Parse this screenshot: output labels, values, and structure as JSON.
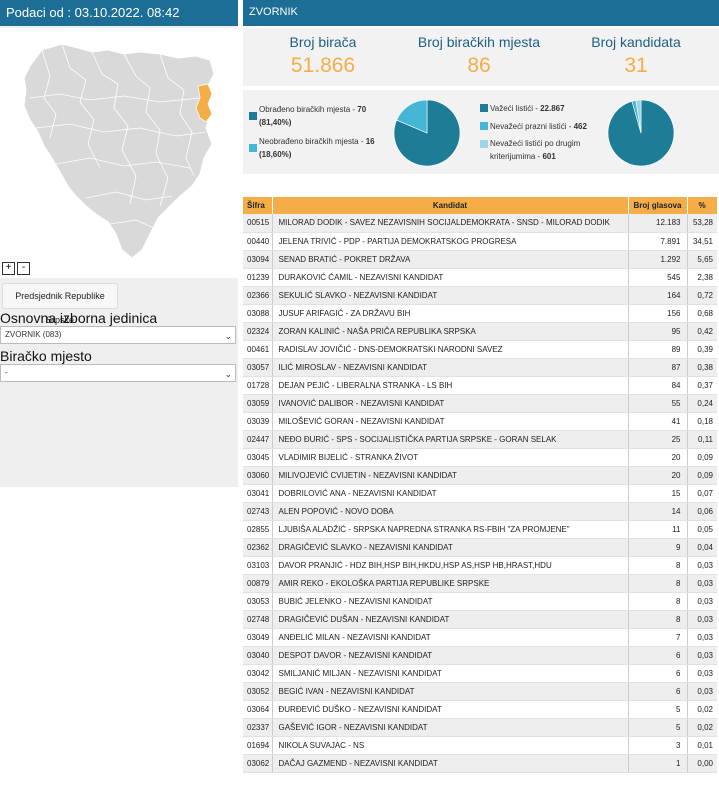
{
  "sidebar": {
    "header": "Podaci od : 03.10.2022. 08:42",
    "zoom_in": "+",
    "zoom_out": "-",
    "election_button": "Predsjednik Republike Srpske",
    "unit_label": "Osnovna izborna jedinica",
    "unit_value": "ZVORNIK (083)",
    "station_label": "Biračko mjesto",
    "station_value": "-"
  },
  "main": {
    "title": "ZVORNIK",
    "stats": [
      {
        "label": "Broj birača",
        "value": "51.866"
      },
      {
        "label": "Broj biračkih mjesta",
        "value": "86"
      },
      {
        "label": "Broj kandidata",
        "value": "31"
      }
    ],
    "stations_legend": [
      {
        "label": "Obrađeno biračkih mjesta - ",
        "value": "70",
        "pct": "(81,40%)",
        "color": "#1e7d96"
      },
      {
        "label": "Neobrađeno biračkih mjesta - ",
        "value": "16",
        "pct": "(18,60%)",
        "color": "#46b6d6"
      }
    ],
    "ballots_legend": [
      {
        "label": "Važeći listići - ",
        "value": "22.867",
        "color": "#1e7d96"
      },
      {
        "label": "Nevažeći prazni listići - ",
        "value": "462",
        "color": "#46b6d6"
      },
      {
        "label": "Nevažeći listići po drugim kriterijumima - ",
        "value": "601",
        "color": "#9fd4e3"
      }
    ],
    "pie_stations": [
      0.814,
      0.186
    ],
    "pie_ballots": [
      22867,
      462,
      601
    ],
    "colors": {
      "primary": "#1e7d96",
      "secondary": "#46b6d6",
      "tertiary": "#9fd4e3",
      "accent": "#f4ad47",
      "header": "#1d6e97"
    }
  },
  "table": {
    "headers": {
      "code": "Šifra",
      "candidate": "Kandidat",
      "votes": "Broj glasova",
      "pct": "%"
    },
    "rows": [
      {
        "code": "00515",
        "candidate": "MILORAD DODIK - SAVEZ NEZAVISNIH SOCIJALDEMOKRATA - SNSD - MILORAD DODIK",
        "votes": "12.183",
        "pct": "53,28"
      },
      {
        "code": "00440",
        "candidate": "JELENA TRIVIĆ - PDP - PARTIJA DEMOKRATSKOG PROGRESA",
        "votes": "7.891",
        "pct": "34,51"
      },
      {
        "code": "03094",
        "candidate": "SENAD BRATIĆ - POKRET DRŽAVA",
        "votes": "1.292",
        "pct": "5,65"
      },
      {
        "code": "01239",
        "candidate": "DURAKOVIĆ ĆAMIL - NEZAVISNI KANDIDAT",
        "votes": "545",
        "pct": "2,38"
      },
      {
        "code": "02366",
        "candidate": "SEKULIĆ SLAVKO - NEZAVISNI KANDIDAT",
        "votes": "164",
        "pct": "0,72"
      },
      {
        "code": "03088",
        "candidate": "JUSUF ARIFAGIĆ - ZA DRŽAVU BIH",
        "votes": "156",
        "pct": "0,68"
      },
      {
        "code": "02324",
        "candidate": "ZORAN KALINIĆ - NAŠA PRIČA REPUBLIKA SRPSKA",
        "votes": "95",
        "pct": "0,42"
      },
      {
        "code": "00461",
        "candidate": "RADISLAV JOVIČIĆ - DNS-DEMOKRATSKI NARODNI SAVEZ",
        "votes": "89",
        "pct": "0,39"
      },
      {
        "code": "03057",
        "candidate": "ILIĆ MIROSLAV - NEZAVISNI KANDIDAT",
        "votes": "87",
        "pct": "0,38"
      },
      {
        "code": "01728",
        "candidate": "DEJAN PEJIĆ - LIBERALNA STRANKA - LS BIH",
        "votes": "84",
        "pct": "0,37"
      },
      {
        "code": "03059",
        "candidate": "IVANOVIĆ DALIBOR - NEZAVISNI KANDIDAT",
        "votes": "55",
        "pct": "0,24"
      },
      {
        "code": "03039",
        "candidate": "MILOŠEVIĆ GORAN - NEZAVISNI KANDIDAT",
        "votes": "41",
        "pct": "0,18"
      },
      {
        "code": "02447",
        "candidate": "NEĐO ĐURIĆ - SPS - SOCIJALISTIČKA PARTIJA SRPSKE - GORAN SELAK",
        "votes": "25",
        "pct": "0,11"
      },
      {
        "code": "03045",
        "candidate": "VLADIMIR BIJELIĆ - STRANKA ŽIVOT",
        "votes": "20",
        "pct": "0,09"
      },
      {
        "code": "03060",
        "candidate": "MILIVOJEVIĆ CVIJETIN - NEZAVISNI KANDIDAT",
        "votes": "20",
        "pct": "0,09"
      },
      {
        "code": "03041",
        "candidate": "DOBRILOVIĆ ANA - NEZAVISNI KANDIDAT",
        "votes": "15",
        "pct": "0,07"
      },
      {
        "code": "02743",
        "candidate": "ALEN POPOVIĆ - NOVO DOBA",
        "votes": "14",
        "pct": "0,06"
      },
      {
        "code": "02855",
        "candidate": "LJUBIŠA ALADŽIĆ - SRPSKA NAPREDNA STRANKA RS-FBIH \"ZA PROMJENE\"",
        "votes": "11",
        "pct": "0,05"
      },
      {
        "code": "02362",
        "candidate": "DRAGIČEVIĆ SLAVKO - NEZAVISNI KANDIDAT",
        "votes": "9",
        "pct": "0,04"
      },
      {
        "code": "03103",
        "candidate": "DAVOR PRANJIĆ - HDZ BIH,HSP BIH,HKDU,HSP AS,HSP HB,HRAST,HDU",
        "votes": "8",
        "pct": "0,03"
      },
      {
        "code": "00879",
        "candidate": "AMIR REKO - EKOLOŠKA PARTIJA REPUBLIKE SRPSKE",
        "votes": "8",
        "pct": "0,03"
      },
      {
        "code": "03053",
        "candidate": "BUBIĆ JELENKO - NEZAVISNI KANDIDAT",
        "votes": "8",
        "pct": "0,03"
      },
      {
        "code": "02748",
        "candidate": "DRAGIČEVIĆ DUŠAN - NEZAVISNI KANDIDAT",
        "votes": "8",
        "pct": "0,03"
      },
      {
        "code": "03049",
        "candidate": "ANĐELIĆ MILAN - NEZAVISNI KANDIDAT",
        "votes": "7",
        "pct": "0,03"
      },
      {
        "code": "03040",
        "candidate": "DESPOT DAVOR - NEZAVISNI KANDIDAT",
        "votes": "6",
        "pct": "0,03"
      },
      {
        "code": "03042",
        "candidate": "SMILJANIĆ MILJAN - NEZAVISNI KANDIDAT",
        "votes": "6",
        "pct": "0,03"
      },
      {
        "code": "03052",
        "candidate": "BEGIĆ IVAN - NEZAVISNI KANDIDAT",
        "votes": "6",
        "pct": "0,03"
      },
      {
        "code": "03064",
        "candidate": "ĐURĐEVIĆ DUŠKO - NEZAVISNI KANDIDAT",
        "votes": "5",
        "pct": "0,02"
      },
      {
        "code": "02337",
        "candidate": "GAŠEVIĆ IGOR - NEZAVISNI KANDIDAT",
        "votes": "5",
        "pct": "0,02"
      },
      {
        "code": "01694",
        "candidate": "NIKOLA SUVAJAC - NS",
        "votes": "3",
        "pct": "0,01"
      },
      {
        "code": "03062",
        "candidate": "DAČAJ GAZMEND - NEZAVISNI KANDIDAT",
        "votes": "1",
        "pct": "0,00"
      }
    ]
  }
}
